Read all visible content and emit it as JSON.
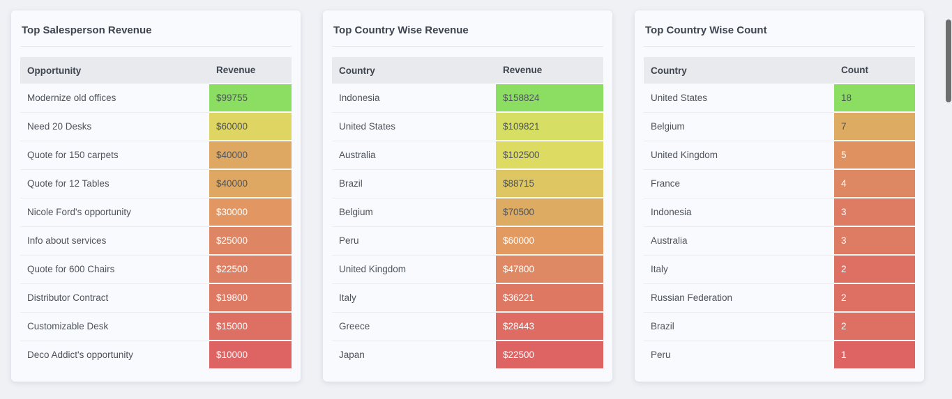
{
  "theme": {
    "page_bg": "#f0f1f5",
    "card_bg": "#f9fafd",
    "header_bg": "#e8eaee",
    "title_color": "#3e4450",
    "label_color": "#4d535b",
    "dark_value_text": "#4d535b",
    "light_value_text": "#ffffff",
    "scrollbar_color": "#6e6e6e",
    "heat_green": "#8cde63",
    "heat_red": "#de6363"
  },
  "cards": [
    {
      "title": "Top Salesperson Revenue",
      "columns": [
        "Opportunity",
        "Revenue"
      ],
      "rows": [
        {
          "label": "Modernize old offices",
          "value": "$99755",
          "bg": "#8cde63",
          "fg": "#4d535b"
        },
        {
          "label": "Need 20 Desks",
          "value": "$60000",
          "bg": "#ded563",
          "fg": "#4d535b"
        },
        {
          "label": "Quote for 150 carpets",
          "value": "$40000",
          "bg": "#dea863",
          "fg": "#4d535b"
        },
        {
          "label": "Quote for 12 Tables",
          "value": "$40000",
          "bg": "#dea863",
          "fg": "#4d535b"
        },
        {
          "label": "Nicole Ford's opportunity",
          "value": "$30000",
          "bg": "#e29763",
          "fg": "#ffffff"
        },
        {
          "label": "Info about services",
          "value": "$25000",
          "bg": "#de8563",
          "fg": "#ffffff"
        },
        {
          "label": "Quote for 600 Chairs",
          "value": "$22500",
          "bg": "#de8063",
          "fg": "#ffffff"
        },
        {
          "label": "Distributor Contract",
          "value": "$19800",
          "bg": "#de7a63",
          "fg": "#ffffff"
        },
        {
          "label": "Customizable Desk",
          "value": "$15000",
          "bg": "#de6f63",
          "fg": "#ffffff"
        },
        {
          "label": "Deco Addict's opportunity",
          "value": "$10000",
          "bg": "#de6363",
          "fg": "#ffffff"
        }
      ]
    },
    {
      "title": "Top Country Wise Revenue",
      "columns": [
        "Country",
        "Revenue"
      ],
      "rows": [
        {
          "label": "Indonesia",
          "value": "$158824",
          "bg": "#8cde63",
          "fg": "#4d535b"
        },
        {
          "label": "United States",
          "value": "$109821",
          "bg": "#d6de63",
          "fg": "#4d535b"
        },
        {
          "label": "Australia",
          "value": "$102500",
          "bg": "#dedb63",
          "fg": "#4d535b"
        },
        {
          "label": "Brazil",
          "value": "$88715",
          "bg": "#dec763",
          "fg": "#4d535b"
        },
        {
          "label": "Belgium",
          "value": "$70500",
          "bg": "#deab63",
          "fg": "#4d535b"
        },
        {
          "label": "Peru",
          "value": "$60000",
          "bg": "#e29a60",
          "fg": "#ffffff"
        },
        {
          "label": "United Kingdom",
          "value": "$47800",
          "bg": "#de8963",
          "fg": "#ffffff"
        },
        {
          "label": "Italy",
          "value": "$36221",
          "bg": "#de7863",
          "fg": "#ffffff"
        },
        {
          "label": "Greece",
          "value": "$28443",
          "bg": "#de6c63",
          "fg": "#ffffff"
        },
        {
          "label": "Japan",
          "value": "$22500",
          "bg": "#de6363",
          "fg": "#ffffff"
        }
      ]
    },
    {
      "title": "Top Country Wise Count",
      "columns": [
        "Country",
        "Count"
      ],
      "rows": [
        {
          "label": "United States",
          "value": "18",
          "bg": "#8cde63",
          "fg": "#4d535b"
        },
        {
          "label": "Belgium",
          "value": "7",
          "bg": "#deab63",
          "fg": "#4d535b"
        },
        {
          "label": "United Kingdom",
          "value": "5",
          "bg": "#e09160",
          "fg": "#ffffff"
        },
        {
          "label": "France",
          "value": "4",
          "bg": "#de8763",
          "fg": "#ffffff"
        },
        {
          "label": "Indonesia",
          "value": "3",
          "bg": "#de7b63",
          "fg": "#ffffff"
        },
        {
          "label": "Australia",
          "value": "3",
          "bg": "#de7b63",
          "fg": "#ffffff"
        },
        {
          "label": "Italy",
          "value": "2",
          "bg": "#de6f63",
          "fg": "#ffffff"
        },
        {
          "label": "Russian Federation",
          "value": "2",
          "bg": "#de6f63",
          "fg": "#ffffff"
        },
        {
          "label": "Brazil",
          "value": "2",
          "bg": "#de6f63",
          "fg": "#ffffff"
        },
        {
          "label": "Peru",
          "value": "1",
          "bg": "#de6363",
          "fg": "#ffffff"
        }
      ]
    }
  ]
}
